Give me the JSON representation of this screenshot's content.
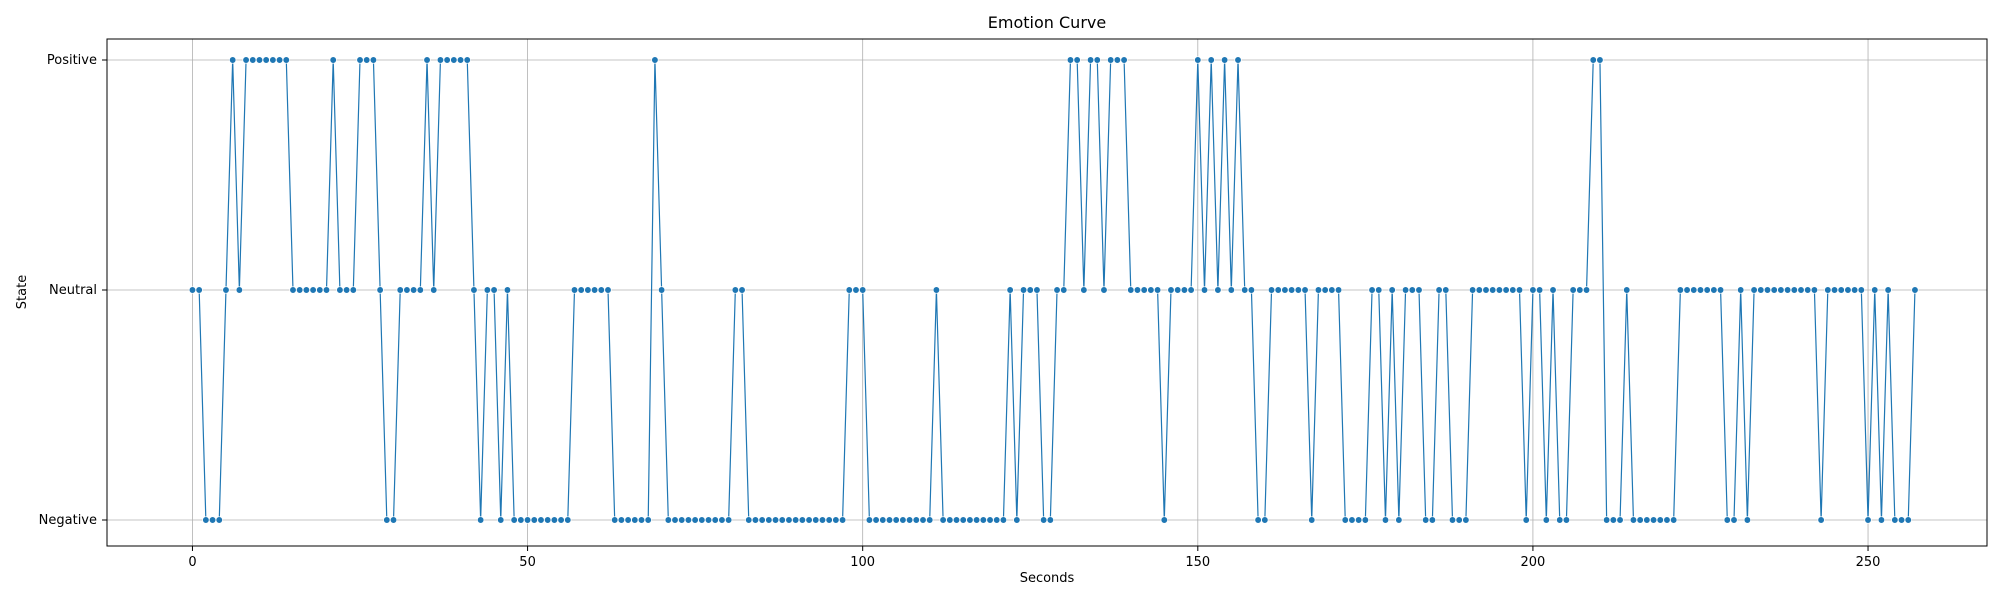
{
  "chart_data": {
    "type": "line",
    "title": "Emotion Curve",
    "xlabel": "Seconds",
    "ylabel": "State",
    "xlim": [
      -12.75,
      267.75
    ],
    "x_ticks": [
      0,
      50,
      100,
      150,
      200,
      250
    ],
    "y_categories": [
      "Negative",
      "Neutral",
      "Positive"
    ],
    "grid": true,
    "markers": true,
    "colors": {
      "line": "#1f77b4",
      "marker": "#1f77b4",
      "grid": "#b0b0b0"
    },
    "series": [
      {
        "x_start": 0,
        "x_step": 1,
        "values": [
          "Neutral",
          "Neutral",
          "Negative",
          "Negative",
          "Negative",
          "Neutral",
          "Positive",
          "Neutral",
          "Positive",
          "Positive",
          "Positive",
          "Positive",
          "Positive",
          "Positive",
          "Positive",
          "Neutral",
          "Neutral",
          "Neutral",
          "Neutral",
          "Neutral",
          "Neutral",
          "Positive",
          "Neutral",
          "Neutral",
          "Neutral",
          "Positive",
          "Positive",
          "Positive",
          "Neutral",
          "Negative",
          "Negative",
          "Neutral",
          "Neutral",
          "Neutral",
          "Neutral",
          "Positive",
          "Neutral",
          "Positive",
          "Positive",
          "Positive",
          "Positive",
          "Positive",
          "Neutral",
          "Negative",
          "Neutral",
          "Neutral",
          "Negative",
          "Neutral",
          "Negative",
          "Negative",
          "Negative",
          "Negative",
          "Negative",
          "Negative",
          "Negative",
          "Negative",
          "Negative",
          "Neutral",
          "Neutral",
          "Neutral",
          "Neutral",
          "Neutral",
          "Neutral",
          "Negative",
          "Negative",
          "Negative",
          "Negative",
          "Negative",
          "Negative",
          "Positive",
          "Neutral",
          "Negative",
          "Negative",
          "Negative",
          "Negative",
          "Negative",
          "Negative",
          "Negative",
          "Negative",
          "Negative",
          "Negative",
          "Neutral",
          "Neutral",
          "Negative",
          "Negative",
          "Negative",
          "Negative",
          "Negative",
          "Negative",
          "Negative",
          "Negative",
          "Negative",
          "Negative",
          "Negative",
          "Negative",
          "Negative",
          "Negative",
          "Negative",
          "Neutral",
          "Neutral",
          "Neutral",
          "Negative",
          "Negative",
          "Negative",
          "Negative",
          "Negative",
          "Negative",
          "Negative",
          "Negative",
          "Negative",
          "Negative",
          "Neutral",
          "Negative",
          "Negative",
          "Negative",
          "Negative",
          "Negative",
          "Negative",
          "Negative",
          "Negative",
          "Negative",
          "Negative",
          "Neutral",
          "Negative",
          "Neutral",
          "Neutral",
          "Neutral",
          "Negative",
          "Negative",
          "Neutral",
          "Neutral",
          "Positive",
          "Positive",
          "Neutral",
          "Positive",
          "Positive",
          "Neutral",
          "Positive",
          "Positive",
          "Positive",
          "Neutral",
          "Neutral",
          "Neutral",
          "Neutral",
          "Neutral",
          "Negative",
          "Neutral",
          "Neutral",
          "Neutral",
          "Neutral",
          "Positive",
          "Neutral",
          "Positive",
          "Neutral",
          "Positive",
          "Neutral",
          "Positive",
          "Neutral",
          "Neutral",
          "Negative",
          "Negative",
          "Neutral",
          "Neutral",
          "Neutral",
          "Neutral",
          "Neutral",
          "Neutral",
          "Negative",
          "Neutral",
          "Neutral",
          "Neutral",
          "Neutral",
          "Negative",
          "Negative",
          "Negative",
          "Negative",
          "Neutral",
          "Neutral",
          "Negative",
          "Neutral",
          "Negative",
          "Neutral",
          "Neutral",
          "Neutral",
          "Negative",
          "Negative",
          "Neutral",
          "Neutral",
          "Negative",
          "Negative",
          "Negative",
          "Neutral",
          "Neutral",
          "Neutral",
          "Neutral",
          "Neutral",
          "Neutral",
          "Neutral",
          "Neutral",
          "Negative",
          "Neutral",
          "Neutral",
          "Negative",
          "Neutral",
          "Negative",
          "Negative",
          "Neutral",
          "Neutral",
          "Neutral",
          "Positive",
          "Positive",
          "Negative",
          "Negative",
          "Negative",
          "Neutral",
          "Negative",
          "Negative",
          "Negative",
          "Negative",
          "Negative",
          "Negative",
          "Negative",
          "Neutral",
          "Neutral",
          "Neutral",
          "Neutral",
          "Neutral",
          "Neutral",
          "Neutral",
          "Negative",
          "Negative",
          "Neutral",
          "Negative",
          "Neutral",
          "Neutral",
          "Neutral",
          "Neutral",
          "Neutral",
          "Neutral",
          "Neutral",
          "Neutral",
          "Neutral",
          "Neutral",
          "Negative",
          "Neutral",
          "Neutral",
          "Neutral",
          "Neutral",
          "Neutral",
          "Neutral",
          "Negative",
          "Neutral",
          "Negative",
          "Neutral",
          "Negative",
          "Negative",
          "Negative",
          "Neutral"
        ]
      }
    ]
  }
}
